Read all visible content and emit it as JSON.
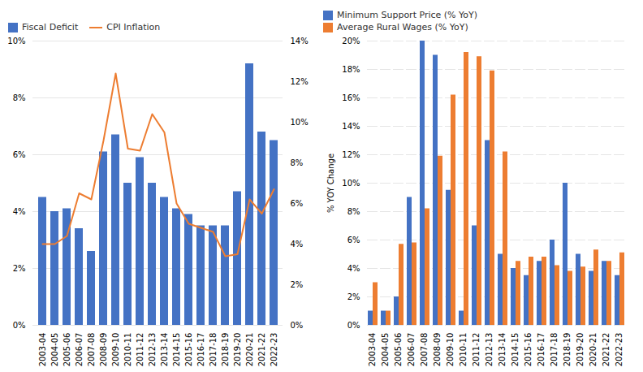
{
  "chart_data": [
    {
      "type": "bar",
      "categories": [
        "2003-04",
        "2004-05",
        "2005-06",
        "2006-07",
        "2007-08",
        "2008-09",
        "2009-10",
        "2010-11",
        "2011-12",
        "2012-13",
        "2013-14",
        "2014-15",
        "2015-16",
        "2016-17",
        "2017-18",
        "2018-19",
        "2019-20",
        "2020-21",
        "2021-22",
        "2022-23"
      ],
      "series": [
        {
          "name": "Fiscal Deficit",
          "type": "bar",
          "color": "#4472C4",
          "values": [
            4.5,
            4.0,
            4.1,
            3.4,
            2.6,
            6.1,
            6.7,
            5.0,
            5.9,
            5.0,
            4.5,
            4.1,
            3.9,
            3.5,
            3.5,
            3.5,
            4.7,
            9.2,
            6.8,
            6.5
          ]
        },
        {
          "name": "CPI Inflation",
          "type": "line",
          "color": "#ED7D31",
          "axis": "y2",
          "values": [
            4.0,
            4.0,
            4.4,
            6.5,
            6.2,
            9.1,
            12.4,
            8.7,
            8.6,
            10.4,
            9.5,
            6.0,
            5.0,
            4.8,
            4.6,
            3.4,
            3.5,
            6.2,
            5.5,
            6.7
          ]
        }
      ],
      "ylim": [
        0,
        10
      ],
      "yticks": [
        {
          "value": 0,
          "label": "0%"
        },
        {
          "value": 2,
          "label": "2%"
        },
        {
          "value": 4,
          "label": "4%"
        },
        {
          "value": 6,
          "label": "6%"
        },
        {
          "value": 8,
          "label": "8%"
        },
        {
          "value": 10,
          "label": "10%"
        }
      ],
      "y2lim": [
        0,
        14
      ],
      "y2ticks": [
        {
          "value": 0,
          "label": "0%"
        },
        {
          "value": 2,
          "label": "2%"
        },
        {
          "value": 4,
          "label": "4%"
        },
        {
          "value": 6,
          "label": "6%"
        },
        {
          "value": 8,
          "label": "8%"
        },
        {
          "value": 10,
          "label": "10%"
        },
        {
          "value": 12,
          "label": "12%"
        },
        {
          "value": 14,
          "label": "14%"
        }
      ],
      "grid": true,
      "legend": "upper left"
    },
    {
      "type": "bar",
      "ylabel": "% YOY Change",
      "categories": [
        "2003-04",
        "2004-05",
        "2005-06",
        "2006-07",
        "2007-08",
        "2008-09",
        "2009-10",
        "2010-11",
        "2011-12",
        "2012-13",
        "2013-14",
        "2014-15",
        "2015-16",
        "2016-17",
        "2017-18",
        "2018-19",
        "2019-20",
        "2020-21",
        "2021-22",
        "2022-23"
      ],
      "series": [
        {
          "name": "Minimum Support Price (% YoY)",
          "color": "#4472C4",
          "values": [
            1.0,
            1.0,
            2.0,
            9.0,
            20.0,
            19.0,
            9.5,
            1.0,
            7.0,
            13.0,
            5.0,
            4.0,
            3.5,
            4.5,
            6.0,
            10.0,
            5.0,
            3.8,
            4.5,
            3.5
          ]
        },
        {
          "name": "Average Rural Wages (% YoY)",
          "color": "#ED7D31",
          "values": [
            3.0,
            1.0,
            5.7,
            5.8,
            8.2,
            11.9,
            16.2,
            19.2,
            18.9,
            17.9,
            12.2,
            4.5,
            4.8,
            4.8,
            4.2,
            3.8,
            4.1,
            5.3,
            4.5,
            5.1
          ]
        }
      ],
      "ylim": [
        0,
        20
      ],
      "yticks": [
        {
          "value": 0,
          "label": "0%"
        },
        {
          "value": 2,
          "label": "2%"
        },
        {
          "value": 4,
          "label": "4%"
        },
        {
          "value": 6,
          "label": "6%"
        },
        {
          "value": 8,
          "label": "8%"
        },
        {
          "value": 10,
          "label": "10%"
        },
        {
          "value": 12,
          "label": "12%"
        },
        {
          "value": 14,
          "label": "14%"
        },
        {
          "value": 16,
          "label": "16%"
        },
        {
          "value": 18,
          "label": "18%"
        },
        {
          "value": 20,
          "label": "20%"
        }
      ],
      "grid": true,
      "legend": "upper left"
    }
  ]
}
